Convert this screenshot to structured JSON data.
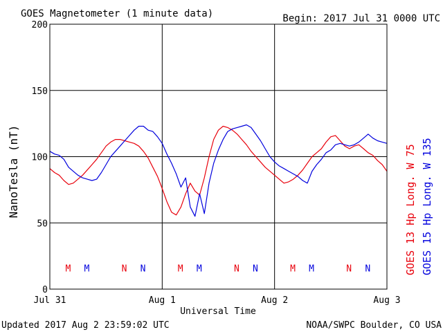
{
  "header": {
    "title": "GOES Magnetometer (1 minute data)",
    "begin": "Begin:  2017 Jul 31 0000 UTC"
  },
  "footer": {
    "updated": "Updated 2017 Aug  2 23:59:02 UTC",
    "credit": "NOAA/SWPC Boulder, CO USA"
  },
  "chart_data": {
    "type": "line",
    "title": "GOES Magnetometer (1 minute data)",
    "xlabel": "Universal Time",
    "ylabel": "NanoTesla (nT)",
    "xlim": [
      0,
      72
    ],
    "ylim": [
      0,
      200
    ],
    "y_ticks": [
      0,
      50,
      100,
      150,
      200
    ],
    "x_ticks": [
      {
        "hour": 0,
        "label": "Jul 31"
      },
      {
        "hour": 24,
        "label": "Aug 1"
      },
      {
        "hour": 48,
        "label": "Aug 2"
      },
      {
        "hour": 72,
        "label": "Aug 3"
      }
    ],
    "grid": true,
    "series": [
      {
        "name": "GOES 13 Hp  Long. W 75",
        "color": "#e8000b",
        "x": [
          0,
          1,
          2,
          3,
          4,
          5,
          6,
          7,
          8,
          9,
          10,
          11,
          12,
          13,
          14,
          15,
          16,
          17,
          18,
          19,
          20,
          21,
          22,
          23,
          24,
          25,
          26,
          27,
          28,
          29,
          30,
          31,
          32,
          33,
          34,
          35,
          36,
          37,
          38,
          39,
          40,
          41,
          42,
          43,
          44,
          45,
          46,
          47,
          48,
          49,
          50,
          51,
          52,
          53,
          54,
          55,
          56,
          57,
          58,
          59,
          60,
          61,
          62,
          63,
          64,
          65,
          66,
          67,
          68,
          69,
          70,
          71,
          72
        ],
        "values": [
          91,
          88,
          86,
          82,
          79,
          80,
          83,
          86,
          90,
          94,
          98,
          103,
          108,
          111,
          113,
          113,
          112,
          111,
          110,
          108,
          104,
          99,
          92,
          85,
          76,
          66,
          58,
          56,
          62,
          72,
          80,
          74,
          71,
          84,
          100,
          113,
          120,
          123,
          122,
          120,
          117,
          113,
          109,
          104,
          100,
          96,
          92,
          89,
          86,
          83,
          80,
          81,
          83,
          86,
          90,
          95,
          100,
          103,
          106,
          111,
          115,
          116,
          112,
          108,
          106,
          108,
          109,
          106,
          103,
          101,
          97,
          94,
          89
        ]
      },
      {
        "name": "GOES 15 Hp  Long. W 135",
        "color": "#0000dd",
        "x": [
          0,
          1,
          2,
          3,
          4,
          5,
          6,
          7,
          8,
          9,
          10,
          11,
          12,
          13,
          14,
          15,
          16,
          17,
          18,
          19,
          20,
          21,
          22,
          23,
          24,
          25,
          26,
          27,
          28,
          29,
          30,
          31,
          32,
          33,
          34,
          35,
          36,
          37,
          38,
          39,
          40,
          41,
          42,
          43,
          44,
          45,
          46,
          47,
          48,
          49,
          50,
          51,
          52,
          53,
          54,
          55,
          56,
          57,
          58,
          59,
          60,
          61,
          62,
          63,
          64,
          65,
          66,
          67,
          68,
          69,
          70,
          71,
          72
        ],
        "values": [
          104,
          102,
          101,
          98,
          92,
          89,
          86,
          84,
          83,
          82,
          83,
          88,
          94,
          100,
          104,
          108,
          112,
          116,
          120,
          123,
          123,
          120,
          119,
          115,
          110,
          102,
          95,
          87,
          77,
          84,
          62,
          55,
          72,
          57,
          80,
          95,
          105,
          113,
          119,
          121,
          122,
          123,
          124,
          122,
          117,
          112,
          106,
          100,
          96,
          93,
          91,
          89,
          87,
          85,
          82,
          80,
          89,
          94,
          98,
          103,
          105,
          109,
          110,
          109,
          108,
          109,
          111,
          114,
          117,
          114,
          112,
          111,
          110
        ]
      }
    ],
    "annotations": [
      {
        "text": "M",
        "hour": 3.9,
        "y": 16,
        "color": "#e8000b"
      },
      {
        "text": "M",
        "hour": 7.9,
        "y": 16,
        "color": "#0000dd"
      },
      {
        "text": "N",
        "hour": 15.9,
        "y": 16,
        "color": "#e8000b"
      },
      {
        "text": "N",
        "hour": 19.9,
        "y": 16,
        "color": "#0000dd"
      },
      {
        "text": "M",
        "hour": 27.9,
        "y": 16,
        "color": "#e8000b"
      },
      {
        "text": "M",
        "hour": 31.9,
        "y": 16,
        "color": "#0000dd"
      },
      {
        "text": "N",
        "hour": 39.9,
        "y": 16,
        "color": "#e8000b"
      },
      {
        "text": "N",
        "hour": 43.9,
        "y": 16,
        "color": "#0000dd"
      },
      {
        "text": "M",
        "hour": 51.9,
        "y": 16,
        "color": "#e8000b"
      },
      {
        "text": "M",
        "hour": 55.9,
        "y": 16,
        "color": "#0000dd"
      },
      {
        "text": "N",
        "hour": 63.9,
        "y": 16,
        "color": "#e8000b"
      },
      {
        "text": "N",
        "hour": 67.9,
        "y": 16,
        "color": "#0000dd"
      }
    ]
  }
}
